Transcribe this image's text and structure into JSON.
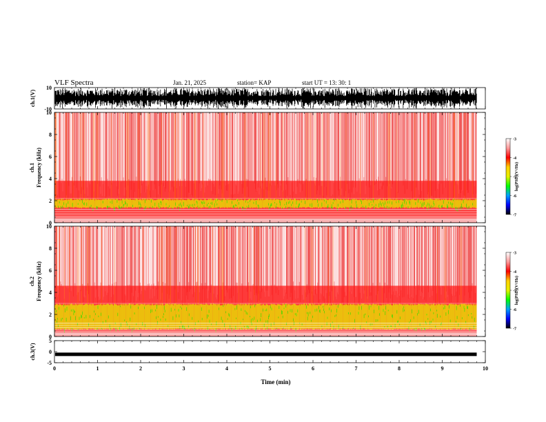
{
  "header": {
    "title": "VLF Spectra",
    "date": "Jan. 21, 2025",
    "station": "station= KAP",
    "start": "start  UT  =   13: 30: 1"
  },
  "colorbar": {
    "ticks": [
      "-3",
      "-4",
      "-5",
      "-6",
      "-7"
    ],
    "label": "log(PSD)(V²/Hz)",
    "colors": [
      "#ffffff",
      "#ff9999",
      "#ff0000",
      "#ffd000",
      "#e6f000",
      "#00ff00",
      "#00a0ff",
      "#0000ff",
      "#000000"
    ]
  },
  "chart_data": [
    {
      "type": "line",
      "panel": "ch1-waveform",
      "ylabel": "ch.1(V)",
      "ylim": [
        -10,
        10
      ],
      "y_ticks": [
        "10",
        "-10"
      ],
      "xlim": [
        0,
        10
      ],
      "color": "#000000"
    },
    {
      "type": "heatmap",
      "panel": "ch1-spectrogram",
      "ylabel": "ch.1 Frequency (kHz)",
      "ylim": [
        0,
        10
      ],
      "y_ticks": [
        "0",
        "2",
        "4",
        "6",
        "8",
        "10"
      ],
      "xlim": [
        0,
        9.8
      ],
      "band_khz": [
        1.3,
        2.2
      ]
    },
    {
      "type": "heatmap",
      "panel": "ch2-spectrogram",
      "ylabel": "ch.2 Frequency (kHz)",
      "ylim": [
        0,
        10
      ],
      "y_ticks": [
        "0",
        "2",
        "4",
        "6",
        "8",
        "10"
      ],
      "xlim": [
        0,
        9.8
      ],
      "band_khz": [
        0.6,
        3.0
      ]
    },
    {
      "type": "line",
      "panel": "ch3-waveform",
      "ylabel": "ch.3(V)",
      "ylim": [
        -5,
        5
      ],
      "y_ticks": [
        "5",
        "0",
        "-5"
      ],
      "xlim": [
        0,
        10
      ],
      "color": "#000000"
    }
  ],
  "xaxis": {
    "label": "Time  (min)",
    "ticks": [
      "0",
      "1",
      "2",
      "3",
      "4",
      "5",
      "6",
      "7",
      "8",
      "9",
      "10"
    ]
  }
}
